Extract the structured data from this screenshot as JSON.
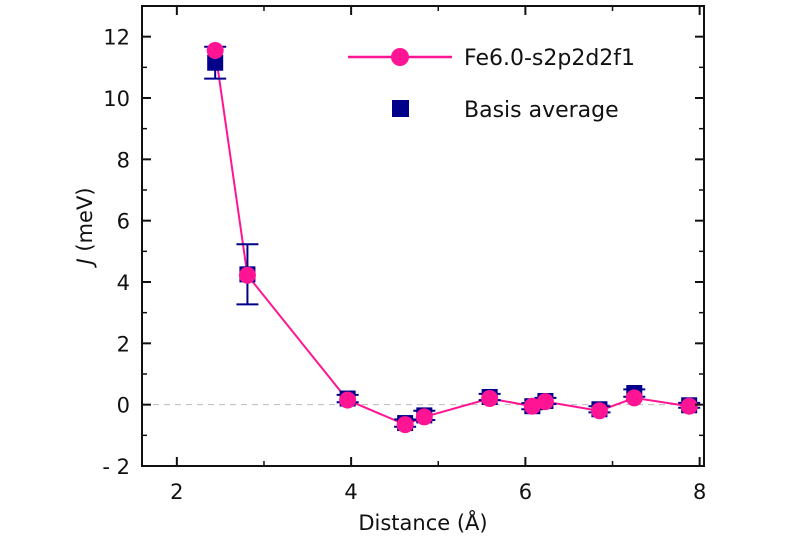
{
  "chart_data": {
    "type": "scatter",
    "xlabel": "Distance (Å)",
    "ylabel_italic": "J",
    "ylabel_rest": " (meV)",
    "xlim": [
      1.6,
      8.05
    ],
    "ylim": [
      -2,
      13
    ],
    "x_ticks": [
      2,
      4,
      6,
      8
    ],
    "x_tick_labels": [
      "2",
      "4",
      "6",
      "8"
    ],
    "y_ticks": [
      -2,
      0,
      2,
      4,
      6,
      8,
      10,
      12
    ],
    "y_tick_labels": [
      "- 2",
      "0",
      "2",
      "4",
      "6",
      "8",
      "10",
      "12"
    ],
    "zero_reference_line": true,
    "legend_position": "top-right",
    "colors": {
      "series_main": "#ff1493",
      "series_avg": "#00008b",
      "axes": "#111111",
      "zero_line": "#bbbbbb"
    },
    "series": [
      {
        "name": "Fe6.0-s2p2d2f1",
        "style": "line-circle",
        "x": [
          2.44,
          2.81,
          3.96,
          4.62,
          4.84,
          5.59,
          6.08,
          6.23,
          6.85,
          7.25,
          7.88
        ],
        "y": [
          11.55,
          4.22,
          0.15,
          -0.65,
          -0.4,
          0.2,
          -0.05,
          0.1,
          -0.2,
          0.22,
          -0.05
        ]
      },
      {
        "name": "Basis average",
        "style": "square-errorbar",
        "x": [
          2.44,
          2.81,
          3.96,
          4.62,
          4.84,
          5.59,
          6.08,
          6.23,
          6.85,
          7.25,
          7.88
        ],
        "y": [
          11.15,
          4.25,
          0.2,
          -0.6,
          -0.35,
          0.25,
          -0.05,
          0.12,
          -0.15,
          0.38,
          -0.02
        ],
        "err": [
          0.52,
          0.98,
          0.12,
          0.12,
          0.15,
          0.1,
          0.1,
          0.1,
          0.1,
          0.12,
          0.08
        ]
      }
    ]
  }
}
